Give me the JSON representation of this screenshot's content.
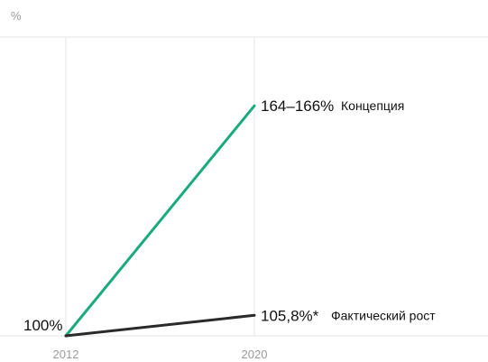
{
  "chart_data": {
    "type": "line",
    "title": "",
    "ylabel": "%",
    "xlabel": "",
    "x": [
      2012,
      2020
    ],
    "xticks": [
      "2012",
      "2020"
    ],
    "start_label": "100%",
    "series": [
      {
        "name": "Концепция",
        "values": [
          100,
          165
        ],
        "end_label": "164–166%",
        "color": "#1aaa7e"
      },
      {
        "name": "Фактический рост",
        "values": [
          100,
          105.8
        ],
        "end_label": "105,8%*",
        "color": "#2a2a2a"
      }
    ],
    "ylim": [
      100,
      180
    ],
    "grid": "vertical lines at x ticks"
  }
}
